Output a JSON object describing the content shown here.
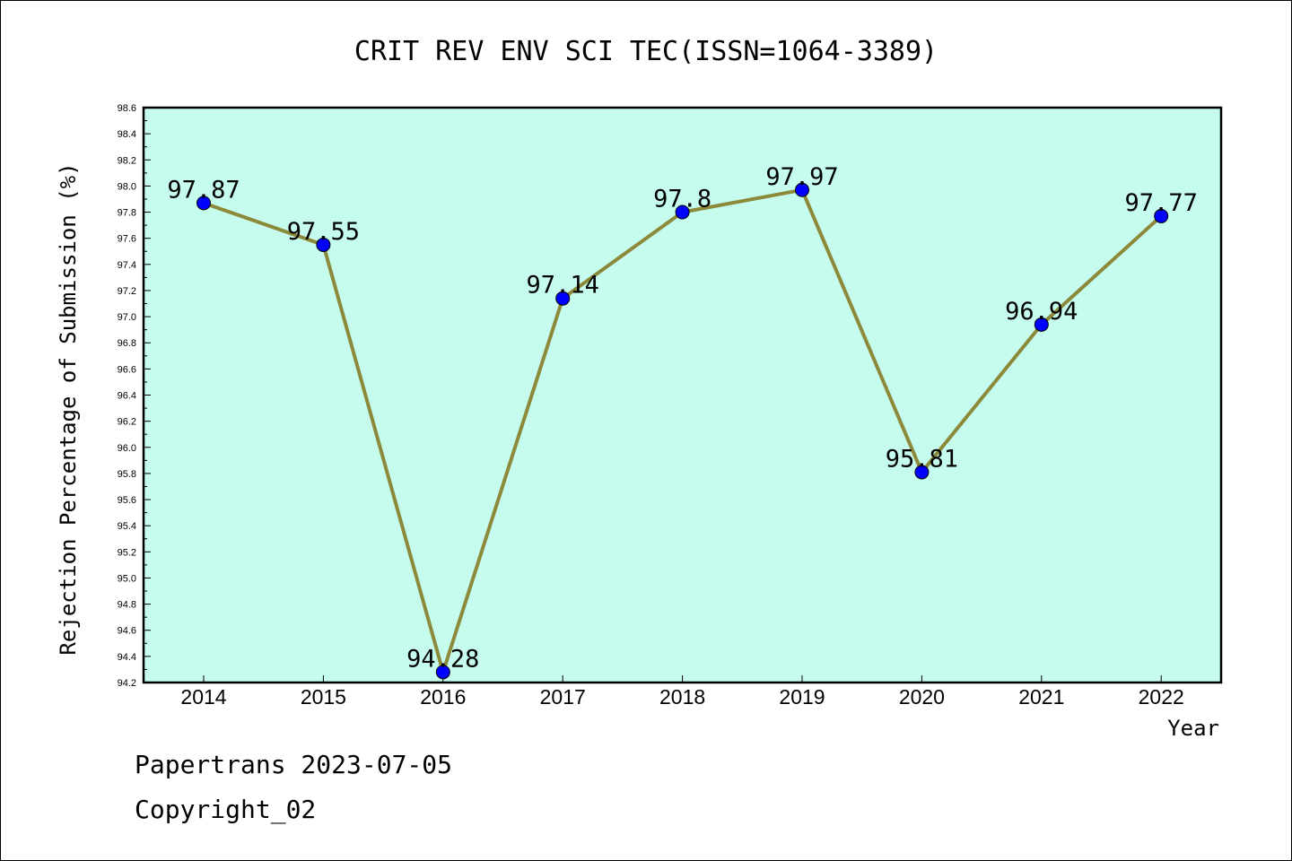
{
  "chart_data": {
    "type": "line",
    "title": "CRIT REV ENV SCI TEC(ISSN=1064-3389)",
    "xlabel": "Year",
    "ylabel": "Rejection Percentage of Submission (%)",
    "categories": [
      "2014",
      "2015",
      "2016",
      "2017",
      "2018",
      "2019",
      "2020",
      "2021",
      "2022"
    ],
    "values": [
      97.87,
      97.55,
      94.28,
      97.14,
      97.8,
      97.97,
      95.81,
      96.94,
      97.77
    ],
    "data_labels": [
      "97.87",
      "97.55",
      "94.28",
      "97.14",
      "97.8",
      "97.97",
      "95.81",
      "96.94",
      "97.77"
    ],
    "y_ticks": [
      "94.2",
      "94.4",
      "94.6",
      "94.8",
      "95.0",
      "95.2",
      "95.4",
      "95.6",
      "95.8",
      "96.0",
      "96.2",
      "96.4",
      "96.6",
      "96.8",
      "97.0",
      "97.2",
      "97.4",
      "97.6",
      "97.8",
      "98.0",
      "98.2",
      "98.4",
      "98.6"
    ],
    "ylim": [
      94.2,
      98.6
    ],
    "grid": false,
    "legend": "none",
    "colors": {
      "plot_background": "#c6fcee",
      "line": "#8c8a3a",
      "marker": "#0000ff"
    }
  },
  "footer": {
    "line1": "Papertrans 2023-07-05",
    "line2": "Copyright_02"
  }
}
